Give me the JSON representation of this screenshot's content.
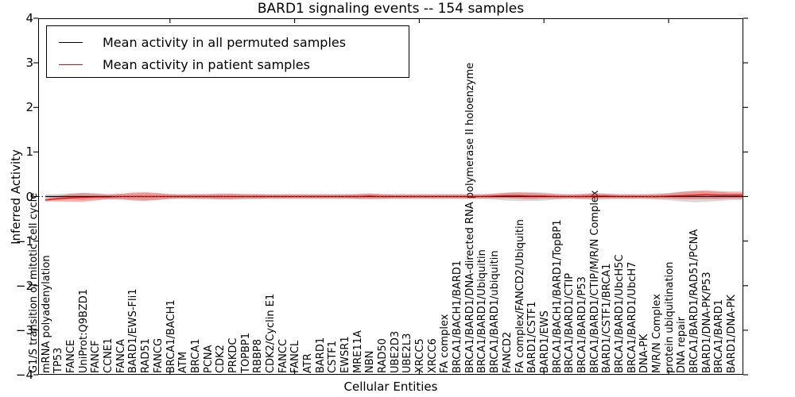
{
  "title": "BARD1 signaling events -- 154 samples",
  "x_axis": {
    "label": "Cellular Entities"
  },
  "y_axis": {
    "label": "Inferred Activity",
    "tick_labels": [
      "4",
      "3",
      "2",
      "1",
      "0",
      "−1",
      "−2",
      "−3",
      "−4"
    ],
    "tick_values": [
      4,
      3,
      2,
      1,
      0,
      -1,
      -2,
      -3,
      -4
    ]
  },
  "legend": {
    "items": [
      {
        "label": "Mean activity in all permuted samples",
        "color": "#000000"
      },
      {
        "label": "Mean activity in patient samples",
        "color": "#ff0000"
      }
    ]
  },
  "colors": {
    "patient_line": "#ff0000",
    "permuted_line": "#000000",
    "patient_band": "rgba(255,0,0,0.30)",
    "permuted_band": "rgba(120,120,120,0.28)",
    "zero_line": "#000000"
  },
  "chart_data": {
    "type": "line",
    "title": "BARD1 signaling events -- 154 samples",
    "xlabel": "Cellular Entities",
    "ylabel": "Inferred Activity",
    "ylim": [
      -4,
      4
    ],
    "grid": false,
    "legend_position": "upper left",
    "major_x_tick_indices": [
      10,
      20,
      30,
      40,
      50
    ],
    "entities": [
      "G1/S transition of mitotic cell cycle",
      "mRNA polyadenylation",
      "TP53",
      "FANCE",
      "UniProt:Q9BZD1",
      "FANCF",
      "CCNE1",
      "FANCA",
      "BARD1/EWS-Fli1",
      "RAD51",
      "FANCG",
      "BRCA1/BACH1",
      "ATM",
      "BRCA1",
      "PCNA",
      "CDK2",
      "PRKDC",
      "TOPBP1",
      "RBBP8",
      "CDK2/Cyclin E1",
      "FANCC",
      "FANCL",
      "ATR",
      "BARD1",
      "CSTF1",
      "EWSR1",
      "MRE11A",
      "NBN",
      "RAD50",
      "UBE2D3",
      "UBE2L3",
      "XRCC5",
      "XRCC6",
      "FA complex",
      "BRCA1/BACH1/BARD1",
      "BRCA1/BARD1/DNA-directed RNA polymerase II holoenzyme",
      "BRCA1/BARD1/Ubiquitin",
      "BRCA1/BARD1/ubiquitin",
      "FANCD2",
      "FA complex/FANCD2/Ubiquitin",
      "BARD1/CSTF1",
      "BARD1/EWS",
      "BRCA1/BACH1/BARD1/TopBP1",
      "BRCA1/BARD1/CTIP",
      "BRCA1/BARD1/P53",
      "BRCA1/BARD1/CTIP/M/R/N Complex",
      "BARD1/CSTF1/BRCA1",
      "BRCA1/BARD1/UbcH5C",
      "BRCA1/BARD1/UbcH7",
      "DNA-PK",
      "M/R/N Complex",
      "protein ubiquitination",
      "DNA repair",
      "BRCA1/BARD1/RAD51/PCNA",
      "BARD1/DNA-PK/P53",
      "BRCA1/BARD1",
      "BARD1/DNA-PK"
    ],
    "series": [
      {
        "name": "Mean activity in all permuted samples",
        "values": [
          0,
          0,
          0,
          0,
          0,
          0,
          0,
          0,
          0,
          0,
          0,
          0,
          0,
          0,
          0,
          0,
          0,
          0,
          0,
          0,
          0,
          0,
          0,
          0,
          0,
          0,
          0,
          0,
          0,
          0,
          0,
          0,
          0,
          0,
          0,
          0,
          0,
          0,
          0,
          0,
          0,
          0,
          0,
          0,
          0,
          0,
          0,
          0,
          0,
          0,
          0,
          0,
          0,
          0,
          0,
          0,
          0
        ],
        "band_halfwidth": [
          0.05,
          0.06,
          0.07,
          0.08,
          0.07,
          0.06,
          0.06,
          0.07,
          0.08,
          0.07,
          0.06,
          0.06,
          0.06,
          0.06,
          0.07,
          0.07,
          0.06,
          0.06,
          0.06,
          0.06,
          0.06,
          0.06,
          0.06,
          0.06,
          0.06,
          0.06,
          0.07,
          0.06,
          0.06,
          0.06,
          0.06,
          0.06,
          0.06,
          0.06,
          0.06,
          0.06,
          0.07,
          0.09,
          0.1,
          0.1,
          0.09,
          0.07,
          0.06,
          0.06,
          0.08,
          0.07,
          0.06,
          0.06,
          0.06,
          0.07,
          0.08,
          0.11,
          0.13,
          0.12,
          0.1,
          0.08,
          0.08
        ]
      },
      {
        "name": "Mean activity in patient samples",
        "values": [
          -0.08,
          -0.05,
          -0.03,
          -0.02,
          -0.01,
          -0.01,
          0,
          0,
          0,
          0,
          0,
          0,
          0,
          0,
          0,
          0,
          0,
          0,
          0,
          0,
          0,
          0,
          0,
          0,
          0,
          0,
          0.01,
          0,
          0,
          0,
          0,
          0,
          0,
          0,
          0,
          0,
          0.01,
          0.02,
          0.02,
          0.01,
          0.01,
          0,
          0,
          0,
          0.01,
          0.01,
          0,
          0,
          0,
          0,
          0.01,
          0.02,
          0.03,
          0.04,
          0.03,
          0.03,
          0.03
        ],
        "band_halfwidth": [
          0.03,
          0.06,
          0.09,
          0.1,
          0.08,
          0.05,
          0.06,
          0.09,
          0.1,
          0.08,
          0.05,
          0.04,
          0.05,
          0.05,
          0.06,
          0.06,
          0.05,
          0.05,
          0.04,
          0.04,
          0.04,
          0.04,
          0.04,
          0.04,
          0.04,
          0.05,
          0.06,
          0.05,
          0.04,
          0.04,
          0.04,
          0.04,
          0.04,
          0.04,
          0.04,
          0.04,
          0.05,
          0.06,
          0.07,
          0.07,
          0.06,
          0.05,
          0.04,
          0.05,
          0.06,
          0.05,
          0.04,
          0.04,
          0.04,
          0.05,
          0.06,
          0.08,
          0.09,
          0.1,
          0.09,
          0.08,
          0.08
        ]
      }
    ],
    "zero_reference_line": {
      "value": 0,
      "style": "dotted"
    }
  }
}
